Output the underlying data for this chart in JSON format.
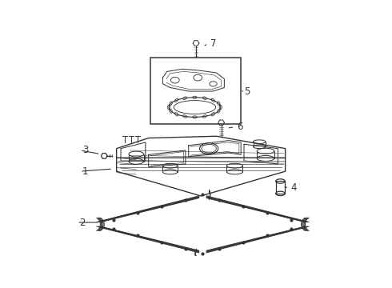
{
  "bg_color": "#ffffff",
  "line_color": "#333333",
  "lw": 0.9,
  "label_fontsize": 8.5,
  "figsize": [
    4.9,
    3.6
  ],
  "dpi": 100
}
